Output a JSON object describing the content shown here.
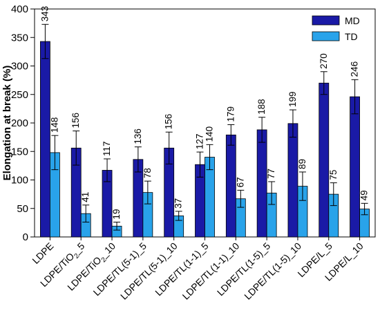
{
  "chart_data": {
    "type": "bar",
    "title": "",
    "xlabel": "",
    "ylabel": "Elongation at break (%)",
    "ylim": [
      0,
      400
    ],
    "yticks": [
      0,
      50,
      100,
      150,
      200,
      250,
      300,
      350,
      400
    ],
    "grid": false,
    "legend_position": "top-right",
    "categories": [
      {
        "main": "LDPE",
        "sub": "",
        "tail": ""
      },
      {
        "main": "LDPE/TiO",
        "sub": "2",
        "tail": "_5"
      },
      {
        "main": "LDPE/TiO",
        "sub": "2",
        "tail": "_10"
      },
      {
        "main": "LDPE/TL(5-1)_5",
        "sub": "",
        "tail": ""
      },
      {
        "main": "LDPE/TL(5-1)_10",
        "sub": "",
        "tail": ""
      },
      {
        "main": "LDPE/TL(1-1)_5",
        "sub": "",
        "tail": ""
      },
      {
        "main": "LDPE/TL(1-1)_10",
        "sub": "",
        "tail": ""
      },
      {
        "main": "LDPE/TL(1-5)_5",
        "sub": "",
        "tail": ""
      },
      {
        "main": "LDPE/TL(1-5)_10",
        "sub": "",
        "tail": ""
      },
      {
        "main": "LDPE/L_5",
        "sub": "",
        "tail": ""
      },
      {
        "main": "LDPE/L_10",
        "sub": "",
        "tail": ""
      }
    ],
    "series": [
      {
        "name": "MD",
        "color": "#1a1aa6",
        "values": [
          343,
          156,
          117,
          136,
          156,
          127,
          179,
          188,
          199,
          270,
          246
        ],
        "errors": [
          30,
          30,
          20,
          22,
          28,
          22,
          18,
          22,
          24,
          20,
          30
        ]
      },
      {
        "name": "TD",
        "color": "#29a3ea",
        "values": [
          148,
          41,
          19,
          78,
          37,
          140,
          67,
          77,
          89,
          75,
          49
        ],
        "errors": [
          30,
          15,
          7,
          20,
          8,
          22,
          15,
          20,
          25,
          20,
          10
        ]
      }
    ]
  }
}
